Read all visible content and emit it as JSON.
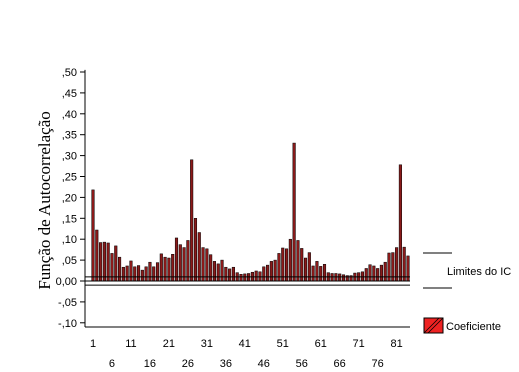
{
  "chart_data": {
    "type": "bar",
    "ylabel": "Função de Autocorrelação",
    "ylim": [
      -0.11,
      0.5
    ],
    "yticks": [
      ",50",
      ",45",
      ",40",
      ",35",
      ",30",
      ",25",
      ",20",
      ",15",
      ",10",
      ",05",
      "0,00",
      "-,05",
      "-,10"
    ],
    "ytick_values": [
      0.5,
      0.45,
      0.4,
      0.35,
      0.3,
      0.25,
      0.2,
      0.15,
      0.1,
      0.05,
      0.0,
      -0.05,
      -0.1
    ],
    "xticks_top": [
      "1",
      "11",
      "21",
      "31",
      "41",
      "51",
      "61",
      "71",
      "81"
    ],
    "xticks_bottom": [
      "6",
      "16",
      "26",
      "36",
      "46",
      "56",
      "66",
      "76"
    ],
    "confidence_limits": [
      0.01,
      -0.01
    ],
    "legend": {
      "limits_label": "Limites do IC",
      "coef_label": "Coeficiente"
    },
    "colors": {
      "bar_fill": "#8b1a1a",
      "bar_edge": "#000000",
      "legend_fill": "#ee2222"
    },
    "lags": [
      1,
      2,
      3,
      4,
      5,
      6,
      7,
      8,
      9,
      10,
      11,
      12,
      13,
      14,
      15,
      16,
      17,
      18,
      19,
      20,
      21,
      22,
      23,
      24,
      25,
      26,
      27,
      28,
      29,
      30,
      31,
      32,
      33,
      34,
      35,
      36,
      37,
      38,
      39,
      40,
      41,
      42,
      43,
      44,
      45,
      46,
      47,
      48,
      49,
      50,
      51,
      52,
      53,
      54,
      55,
      56,
      57,
      58,
      59,
      60,
      61,
      62,
      63,
      64,
      65,
      66,
      67,
      68,
      69,
      70,
      71,
      72,
      73,
      74,
      75,
      76,
      77,
      78,
      79,
      80,
      81,
      82,
      83,
      84
    ],
    "values": [
      0.218,
      0.122,
      0.092,
      0.093,
      0.091,
      0.066,
      0.084,
      0.057,
      0.033,
      0.036,
      0.048,
      0.034,
      0.037,
      0.026,
      0.034,
      0.045,
      0.034,
      0.044,
      0.065,
      0.057,
      0.055,
      0.064,
      0.103,
      0.087,
      0.08,
      0.097,
      0.29,
      0.15,
      0.116,
      0.08,
      0.077,
      0.063,
      0.047,
      0.041,
      0.05,
      0.033,
      0.029,
      0.033,
      0.02,
      0.016,
      0.017,
      0.018,
      0.021,
      0.024,
      0.022,
      0.034,
      0.038,
      0.047,
      0.05,
      0.066,
      0.079,
      0.077,
      0.1,
      0.33,
      0.097,
      0.078,
      0.055,
      0.068,
      0.036,
      0.047,
      0.035,
      0.04,
      0.02,
      0.018,
      0.018,
      0.017,
      0.015,
      0.013,
      0.013,
      0.019,
      0.02,
      0.022,
      0.03,
      0.039,
      0.036,
      0.03,
      0.038,
      0.045,
      0.067,
      0.068,
      0.08,
      0.278,
      0.081,
      0.06
    ]
  }
}
